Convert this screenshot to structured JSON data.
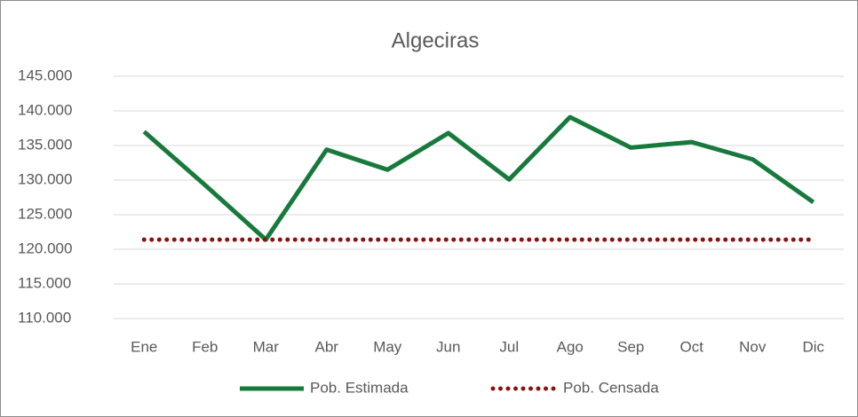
{
  "chart_data": {
    "type": "line",
    "title": "Algeciras",
    "categories": [
      "Ene",
      "Feb",
      "Mar",
      "Abr",
      "May",
      "Jun",
      "Jul",
      "Ago",
      "Sep",
      "Oct",
      "Nov",
      "Dic"
    ],
    "series": [
      {
        "name": "Pob. Estimada",
        "color": "#177a3c",
        "style": "solid",
        "values": [
          137000,
          129300,
          121400,
          134400,
          131500,
          136800,
          130100,
          139100,
          134700,
          135500,
          133000,
          126800
        ]
      },
      {
        "name": "Pob. Censada",
        "color": "#8b1010",
        "style": "dotted",
        "values": [
          121400,
          121400,
          121400,
          121400,
          121400,
          121400,
          121400,
          121400,
          121400,
          121400,
          121400,
          121400
        ]
      }
    ],
    "ylim": [
      110000,
      145000
    ],
    "yticks": [
      {
        "value": 110000,
        "label": "110.000"
      },
      {
        "value": 115000,
        "label": "115.000"
      },
      {
        "value": 120000,
        "label": "120.000"
      },
      {
        "value": 125000,
        "label": "125.000"
      },
      {
        "value": 130000,
        "label": "130.000"
      },
      {
        "value": 135000,
        "label": "135.000"
      },
      {
        "value": 140000,
        "label": "140.000"
      },
      {
        "value": 145000,
        "label": "145.000"
      }
    ],
    "grid": true,
    "legend": "bottom"
  }
}
